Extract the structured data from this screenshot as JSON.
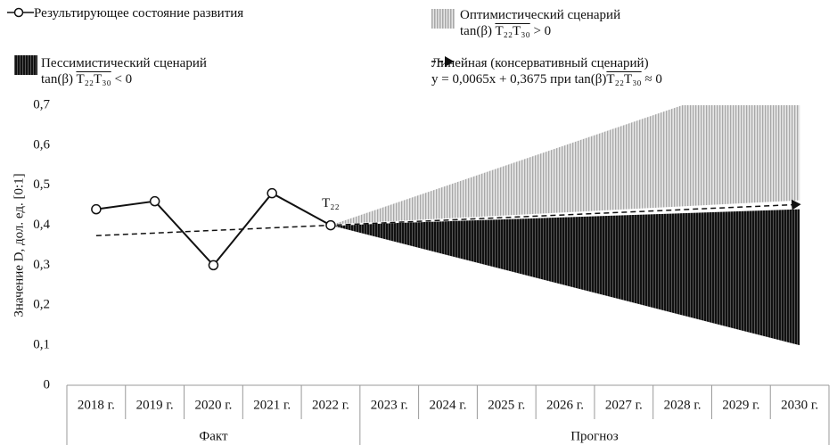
{
  "chart_data": {
    "type": "line",
    "y_label": "Значение D, дол. ед. [0:1]",
    "categories": [
      "2018 г.",
      "2019 г.",
      "2020 г.",
      "2021 г.",
      "2022 г.",
      "2023 г.",
      "2024 г.",
      "2025 г.",
      "2026 г.",
      "2027 г.",
      "2028 г.",
      "2029 г.",
      "2030 г."
    ],
    "group_labels": [
      "Факт",
      "Прогноз"
    ],
    "annotation": "T₂₂",
    "ylim": [
      0,
      0.7
    ],
    "yticks": [
      0,
      {
        "value": 0.1,
        "label": "0,1"
      },
      {
        "value": 0.2,
        "label": "0,2"
      },
      {
        "value": 0.3,
        "label": "0,3"
      },
      {
        "value": 0.4,
        "label": "0,4"
      },
      {
        "value": 0.5,
        "label": "0,5"
      },
      {
        "value": 0.6,
        "label": "0,6"
      },
      {
        "value": 0.7,
        "label": "0,7"
      }
    ],
    "series": [
      {
        "name": "Результирующее состояние развития",
        "color": "#111111",
        "values": [
          0.44,
          0.46,
          0.3,
          0.48,
          0.4,
          null,
          null,
          null,
          null,
          null,
          null,
          null,
          null
        ]
      },
      {
        "name": "Оптимистический сценарий",
        "color": "#bdbdbd",
        "formula": {
          "prefix": "tan(β)",
          "vector": "T₂₂T₃₀",
          "suffix": "> 0"
        },
        "upper": [
          null,
          null,
          null,
          null,
          0.4,
          0.45,
          0.5,
          0.55,
          0.6,
          0.65,
          0.7,
          0.75,
          0.8
        ],
        "lower": [
          null,
          null,
          null,
          null,
          0.4,
          0.4075,
          0.415,
          0.4225,
          0.43,
          0.4375,
          0.445,
          0.4525,
          0.46
        ]
      },
      {
        "name": "Пессимистический сценарий",
        "color": "#1a1a1a",
        "formula": {
          "prefix": "tan(β)",
          "vector": "T₂₂T₃₀",
          "suffix": "< 0"
        },
        "upper": [
          null,
          null,
          null,
          null,
          0.4,
          0.405,
          0.41,
          0.415,
          0.42,
          0.425,
          0.43,
          0.435,
          0.44
        ],
        "lower": [
          null,
          null,
          null,
          null,
          0.4,
          0.3625,
          0.325,
          0.2875,
          0.25,
          0.2125,
          0.175,
          0.1375,
          0.1
        ]
      },
      {
        "name": "Линейная (консервативный сценарий)",
        "color": "#111111",
        "formula": {
          "prefix": "y = 0,0065x + 0,3675 при tan(β)",
          "vector": "T₂₂T₃₀",
          "suffix": "≈ 0"
        },
        "values": [
          0.374,
          0.3805,
          0.387,
          0.3935,
          0.4,
          0.4065,
          0.413,
          0.4195,
          0.426,
          0.4325,
          0.439,
          0.4455,
          0.452
        ]
      }
    ]
  }
}
